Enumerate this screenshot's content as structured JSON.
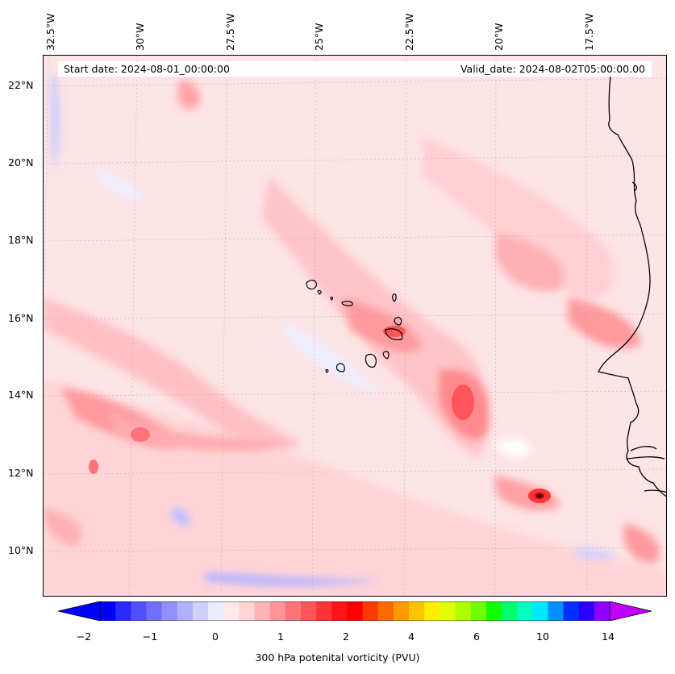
{
  "map": {
    "info": {
      "start": "Start date: 2024-08-01_00:00:00",
      "valid": "Valid_date: 2024-08-02T05:00:00.00"
    },
    "lon_labels": [
      "32.5°W",
      "30°W",
      "27.5°W",
      "25°W",
      "22.5°W",
      "20°W",
      "17.5°W"
    ],
    "lat_labels": [
      "22°N",
      "20°N",
      "18°N",
      "16°N",
      "14°N",
      "12°N",
      "10°N"
    ],
    "field": "300 hPa potential vorticity",
    "gridlines": true
  },
  "colorbar": {
    "ticks": [
      "−2",
      "−1",
      "0",
      "1",
      "2",
      "4",
      "6",
      "10",
      "14"
    ],
    "label": "300 hPa potenital vorticity (PVU)",
    "colors": [
      "#0000ff",
      "#2a2aff",
      "#5050ff",
      "#7070ff",
      "#9090ff",
      "#b0b0ff",
      "#d0d0ff",
      "#ececff",
      "#ffe8ea",
      "#ffd4d6",
      "#ffb4b8",
      "#ff9498",
      "#ff7478",
      "#ff5458",
      "#ff3438",
      "#ff1418",
      "#ff0000",
      "#ff3a00",
      "#ff6a00",
      "#ff9a00",
      "#ffc400",
      "#ffee00",
      "#e0ff00",
      "#b0ff00",
      "#70ff00",
      "#10ff00",
      "#00ff70",
      "#00ffc0",
      "#00e8ff",
      "#0090ff",
      "#0030ff",
      "#2a00ff",
      "#9000ff"
    ],
    "extend_low": "#0000ff",
    "extend_high": "#c000ff"
  }
}
